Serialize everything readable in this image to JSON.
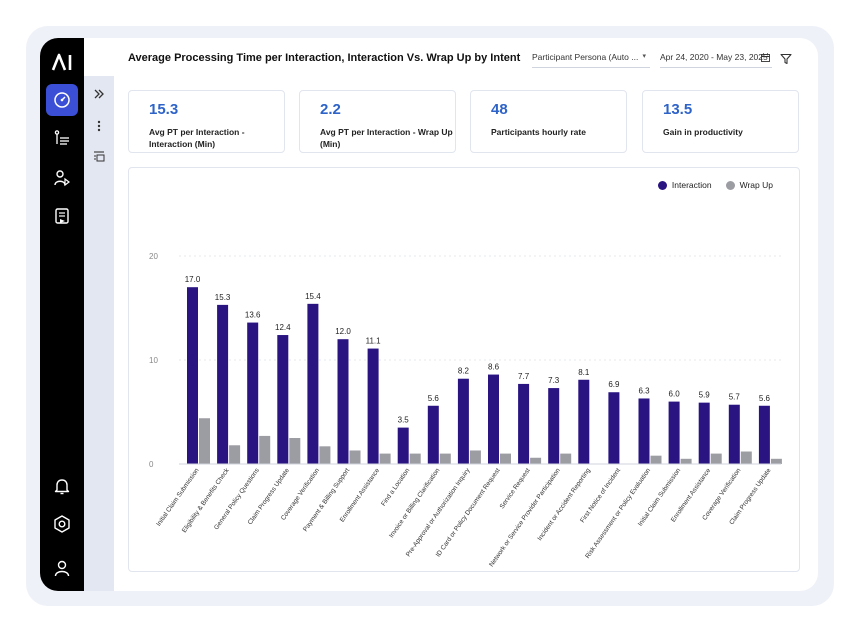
{
  "app": {
    "logo_text": "AI",
    "nav_items": [
      {
        "icon": "dashboard-icon",
        "active": true
      },
      {
        "icon": "list-ordered-icon",
        "active": false
      },
      {
        "icon": "user-play-icon",
        "active": false
      },
      {
        "icon": "checklist-icon",
        "active": false
      }
    ],
    "nav_bottom": [
      {
        "icon": "bell-icon"
      },
      {
        "icon": "settings-icon"
      },
      {
        "icon": "user-icon"
      }
    ],
    "sub_nav": [
      {
        "icon": "double-chevron-right-icon"
      },
      {
        "icon": "more-vertical-icon"
      },
      {
        "icon": "panel-list-icon"
      }
    ]
  },
  "header": {
    "title": "Average Processing Time per Interaction, Interaction Vs. Wrap Up by Intent",
    "persona_select": "Participant Persona (Auto ...",
    "date_range": "Apr 24, 2020 - May 23, 2025"
  },
  "kpis": [
    {
      "value": "15.3",
      "label": "Avg PT per Interaction - Interaction (Min)"
    },
    {
      "value": "2.2",
      "label": "Avg PT per Interaction - Wrap Up (Min)"
    },
    {
      "value": "48",
      "label": "Participants hourly rate"
    },
    {
      "value": "13.5",
      "label": "Gain in productivity"
    }
  ],
  "colors": {
    "interaction": "#2a1482",
    "wrap_up": "#9c9ca3",
    "accent": "#2e63c8"
  },
  "chart_data": {
    "type": "bar",
    "legend_position": "top-right",
    "grid": true,
    "ylim": [
      0,
      20
    ],
    "yticks": [
      0,
      10,
      20
    ],
    "categories": [
      "Initial Claim Submission",
      "Eligibility & Benefits Check",
      "General Policy Questions",
      "Claim Progress Update",
      "Coverage Verification",
      "Payment & Billing Support",
      "Enrollment Assistance",
      "Find a Location",
      "Invoice or Billing Clarification",
      "Pre-Approval or Authorization Inquiry",
      "ID Card or Policy Document Request",
      "Service Request",
      "Network or Service Provider Participation",
      "Incident or Accident Reporting",
      "First Notice of Incident",
      "Risk Assessment or Policy Evaluation",
      "Initial Claim Submission",
      "Enrollment Assistance",
      "Coverage Verification",
      "Claim Progress Update"
    ],
    "series": [
      {
        "name": "Interaction",
        "values": [
          17.0,
          15.3,
          13.6,
          12.4,
          15.4,
          12.0,
          11.1,
          3.5,
          5.6,
          8.2,
          8.6,
          7.7,
          7.3,
          8.1,
          6.9,
          6.3,
          6.0,
          5.9,
          5.7,
          5.6
        ],
        "labels": [
          "17.0",
          "15.3",
          "13.6",
          "12.4",
          "15.4",
          "12.0",
          "11.1",
          "3.5",
          "5.6",
          "8.2",
          "8.6",
          "7.7",
          "7.3",
          "8.1",
          "6.9",
          "6.3",
          "6.0",
          "5.9",
          "5.7",
          "5.6"
        ]
      },
      {
        "name": "Wrap Up",
        "values": [
          4.4,
          1.8,
          2.7,
          2.5,
          1.7,
          1.3,
          1.0,
          1.0,
          1.0,
          1.3,
          1.0,
          0.6,
          1.0,
          0,
          0,
          0.8,
          0.5,
          1.0,
          1.2,
          0.5
        ]
      }
    ]
  }
}
